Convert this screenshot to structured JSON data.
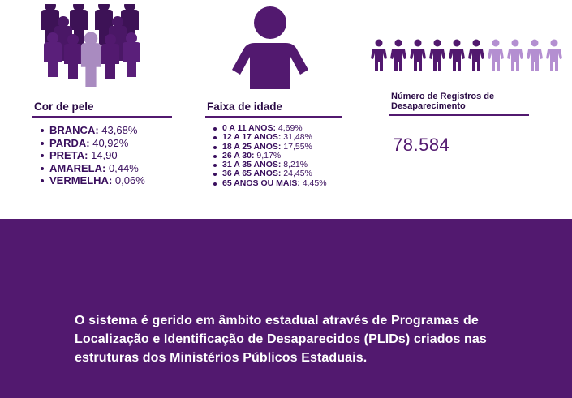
{
  "skin": {
    "title": "Cor de pele",
    "items": [
      {
        "label": "BRANCA:",
        "value": "43,68%"
      },
      {
        "label": "PARDA:",
        "value": "40,92%"
      },
      {
        "label": "PRETA:",
        "value": "14,90"
      },
      {
        "label": "AMARELA:",
        "value": "0,44%"
      },
      {
        "label": "VERMELHA:",
        "value": "0,06%"
      }
    ]
  },
  "age": {
    "title": "Faixa de idade",
    "items": [
      {
        "label": "0 A 11 ANOS:",
        "value": "4,69%"
      },
      {
        "label": "12 A 17 ANOS:",
        "value": "31,48%"
      },
      {
        "label": "18 A 25 ANOS:",
        "value": "17,55%"
      },
      {
        "label": "26 A 30:",
        "value": "9,17%"
      },
      {
        "label": "31 A 35 ANOS:",
        "value": "8,21%"
      },
      {
        "label": "36 A 65 ANOS:",
        "value": "24,45%"
      },
      {
        "label": "65 ANOS OU MAIS:",
        "value": "4,45%"
      }
    ]
  },
  "registros": {
    "title": "Número de Registros de Desaparecimento",
    "value": "78.584"
  },
  "footer": {
    "text": "O sistema é gerido em âmbito estadual através de Programas de Localização e Identificação de Desaparecidos (PLIDs) criados nas estruturas dos Ministérios Públicos Estaduais."
  },
  "icons": {
    "crowd": "crowd-icon",
    "person": "person-icon",
    "people_row": "people-row-icon"
  },
  "colors": {
    "dark_purple": "#52196f",
    "mid_purple": "#7a3c9a",
    "light_purple": "#b48fd1",
    "crowd_highlight": "#a98bc0",
    "text": "#2a0a45"
  }
}
